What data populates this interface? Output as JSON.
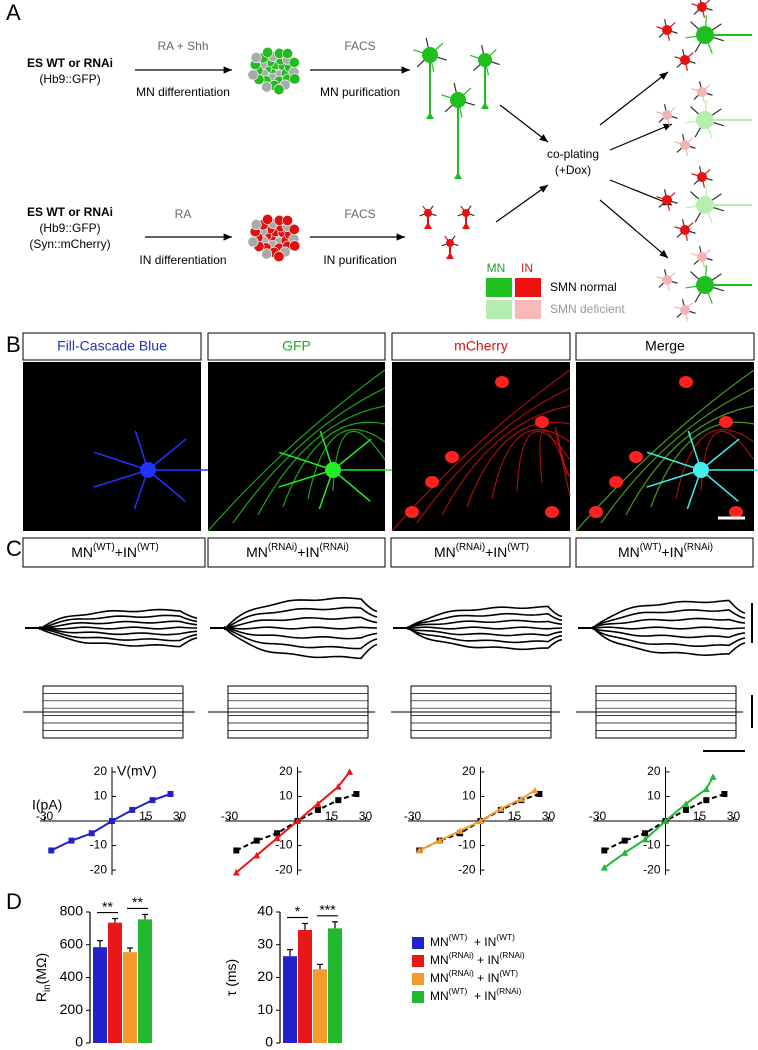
{
  "panel_a": {
    "label": "A",
    "mn_source": [
      "ES WT or RNAi",
      "(Hb9::GFP)"
    ],
    "mn_step1": [
      "RA + Shh",
      "MN differentiation"
    ],
    "mn_step2": [
      "FACS",
      "MN purification"
    ],
    "coplating": [
      "co-plating",
      "(+Dox)"
    ],
    "in_source": [
      "ES WT or RNAi",
      "(Hb9::GFP)",
      "(Syn::mCherry)"
    ],
    "in_step1": [
      "RA",
      "IN differentiation"
    ],
    "in_step2": [
      "FACS",
      "IN purification"
    ],
    "key": {
      "mn": "MN",
      "in": "IN",
      "normal": "SMN normal",
      "deficient": "SMN deficient"
    }
  },
  "panel_b": {
    "label": "B",
    "titles": [
      "Fill-Cascade Blue",
      "GFP",
      "mCherry",
      "Merge"
    ]
  },
  "panel_c": {
    "label": "C",
    "conditions": [
      [
        {
          "text": "MN"
        },
        {
          "sup": "(WT)"
        },
        {
          "text": "+IN"
        },
        {
          "sup": "(WT)"
        }
      ],
      [
        {
          "text": "MN"
        },
        {
          "sup": "(RNAi)"
        },
        {
          "text": "+IN"
        },
        {
          "sup": "(RNAi)"
        }
      ],
      [
        {
          "text": "MN"
        },
        {
          "sup": "(RNAi)"
        },
        {
          "text": "+IN"
        },
        {
          "sup": "(WT)"
        }
      ],
      [
        {
          "text": "MN"
        },
        {
          "sup": "(WT)"
        },
        {
          "text": "+IN"
        },
        {
          "sup": "(RNAi)"
        }
      ]
    ]
  },
  "panel_d": {
    "label": "D",
    "legend": [
      {
        "color": "#2222cc",
        "label": [
          {
            "text": "MN"
          },
          {
            "sup": "(WT)"
          },
          {
            "text": "  + IN"
          },
          {
            "sup": "(WT)"
          }
        ]
      },
      {
        "color": "#e81818",
        "label": [
          {
            "text": "MN"
          },
          {
            "sup": "(RNAi)"
          },
          {
            "text": " + IN"
          },
          {
            "sup": "(RNAi)"
          }
        ]
      },
      {
        "color": "#f59a2c",
        "label": [
          {
            "text": "MN"
          },
          {
            "sup": "(RNAi)"
          },
          {
            "text": " + IN"
          },
          {
            "sup": "(WT)"
          }
        ]
      },
      {
        "color": "#22b830",
        "label": [
          {
            "text": "MN"
          },
          {
            "sup": "(WT)"
          },
          {
            "text": "  + IN"
          },
          {
            "sup": "(RNAi)"
          }
        ]
      }
    ]
  },
  "chart_data": [
    {
      "type": "line",
      "ylabel": "V(mV)",
      "xlabel": "I(pA)",
      "xlim": [
        -32,
        32
      ],
      "ylim": [
        -22,
        22
      ],
      "xticks": [
        -30,
        15,
        30
      ],
      "yticks": [
        -20,
        -10,
        10,
        20
      ],
      "series": [
        {
          "color": "#2222cc",
          "marker": "square",
          "x": [
            -27,
            -18,
            -9,
            0,
            9,
            18,
            26
          ],
          "values": [
            -12,
            -8,
            -5,
            0,
            4.5,
            8.5,
            11
          ]
        }
      ]
    },
    {
      "type": "line",
      "xlim": [
        -32,
        32
      ],
      "ylim": [
        -22,
        22
      ],
      "xticks": [
        -30,
        15,
        30
      ],
      "yticks": [
        -20,
        -10,
        10,
        20
      ],
      "series": [
        {
          "color": "#000000",
          "marker": "square",
          "dashed": true,
          "x": [
            -27,
            -18,
            -9,
            0,
            9,
            18,
            26
          ],
          "values": [
            -12,
            -8,
            -5,
            0,
            4.5,
            8.5,
            11
          ]
        },
        {
          "color": "#e81818",
          "marker": "triangle",
          "x": [
            -27,
            -18,
            -9,
            0,
            9,
            18,
            23
          ],
          "values": [
            -21,
            -14,
            -7,
            0,
            7,
            14,
            20
          ]
        }
      ]
    },
    {
      "type": "line",
      "xlim": [
        -32,
        32
      ],
      "ylim": [
        -22,
        22
      ],
      "xticks": [
        -30,
        15,
        30
      ],
      "yticks": [
        -20,
        -10,
        10,
        20
      ],
      "series": [
        {
          "color": "#000000",
          "marker": "square",
          "dashed": true,
          "x": [
            -27,
            -18,
            -9,
            0,
            9,
            18,
            26
          ],
          "values": [
            -12,
            -8,
            -5,
            0,
            4.5,
            8.5,
            11
          ]
        },
        {
          "color": "#f59a2c",
          "marker": "triangle",
          "x": [
            -27,
            -18,
            -9,
            0,
            9,
            18,
            24
          ],
          "values": [
            -12,
            -8,
            -4,
            0,
            5,
            9,
            12.5
          ]
        }
      ]
    },
    {
      "type": "line",
      "xlim": [
        -32,
        32
      ],
      "ylim": [
        -22,
        22
      ],
      "xticks": [
        -30,
        15,
        30
      ],
      "yticks": [
        -20,
        -10,
        10,
        20
      ],
      "series": [
        {
          "color": "#000000",
          "marker": "square",
          "dashed": true,
          "x": [
            -27,
            -18,
            -9,
            0,
            9,
            18,
            26
          ],
          "values": [
            -12,
            -8,
            -5,
            0,
            4.5,
            8.5,
            11
          ]
        },
        {
          "color": "#22b830",
          "marker": "triangle",
          "x": [
            -27,
            -18,
            -9,
            0,
            9,
            18,
            21
          ],
          "values": [
            -19,
            -13,
            -7.5,
            0,
            7,
            13,
            18
          ]
        }
      ]
    },
    {
      "type": "bar",
      "ylabel": [
        {
          "text": "R"
        },
        {
          "sub": "in"
        },
        {
          "text": "(MΩ)"
        }
      ],
      "ylim": [
        0,
        800
      ],
      "yticks": [
        0,
        200,
        400,
        600,
        800
      ],
      "categories": [
        null,
        null,
        null,
        null
      ],
      "values": [
        585,
        735,
        555,
        755
      ],
      "errors": [
        40,
        25,
        25,
        30
      ],
      "colors": [
        "#2222cc",
        "#e81818",
        "#f59a2c",
        "#22b830"
      ],
      "significance": [
        {
          "label": "**",
          "between": [
            0,
            1
          ]
        },
        {
          "label": "**",
          "between": [
            2,
            3
          ]
        }
      ]
    },
    {
      "type": "bar",
      "ylabel": [
        {
          "text": "τ (ms)"
        }
      ],
      "ylim": [
        0,
        40
      ],
      "yticks": [
        0,
        10,
        20,
        30,
        40
      ],
      "categories": [
        null,
        null,
        null,
        null
      ],
      "values": [
        26.5,
        34.5,
        22.5,
        35
      ],
      "errors": [
        2,
        2,
        1.5,
        2
      ],
      "colors": [
        "#2222cc",
        "#e81818",
        "#f59a2c",
        "#22b830"
      ],
      "significance": [
        {
          "label": "*",
          "between": [
            0,
            1
          ]
        },
        {
          "label": "***",
          "between": [
            2,
            3
          ]
        }
      ]
    }
  ]
}
